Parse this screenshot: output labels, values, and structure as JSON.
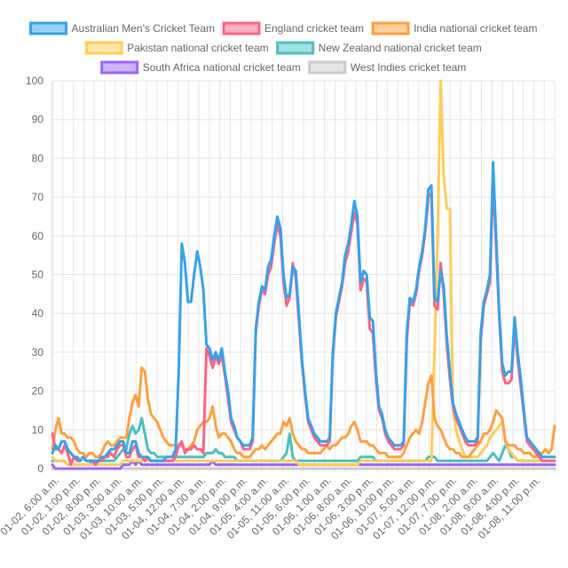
{
  "chart_data": {
    "type": "line",
    "ylim": [
      0,
      100
    ],
    "y_ticks": [
      0,
      10,
      20,
      30,
      40,
      50,
      60,
      70,
      80,
      90,
      100
    ],
    "grid": true,
    "legend_position": "top",
    "point_count": 164,
    "x_tick_labels": [
      "01-02, 6:00 a.m.",
      "01-02, 1:00 p.m.",
      "01-02, 8:00 p.m.",
      "01-03, 3:00 a.m.",
      "01-03, 10:00 a.m.",
      "01-03, 5:00 p.m.",
      "01-04, 12:00 a.m.",
      "01-04, 7:00 a.m.",
      "01-04, 2:00 p.m.",
      "01-04, 9:00 p.m.",
      "01-05, 4:00 a.m.",
      "01-05, 11:00 a.m.",
      "01-05, 6:00 p.m.",
      "01-06, 1:00 a.m.",
      "01-06, 8:00 a.m.",
      "01-06, 3:00 p.m.",
      "01-06, 10:00 p.m.",
      "01-07, 5:00 a.m.",
      "01-07, 12:00 p.m.",
      "01-07, 7:00 p.m.",
      "01-08, 2:00 a.m.",
      "01-08, 9:00 a.m.",
      "01-08, 4:00 p.m.",
      "01-08, 11:00 p.m."
    ],
    "series": [
      {
        "name": "Australian Men's Cricket Team",
        "color": "#36a2eb",
        "fill": "#9ad0f5",
        "values": [
          4,
          6,
          5,
          7,
          7,
          5,
          4,
          3,
          3,
          2,
          3,
          2,
          2,
          2,
          2,
          2,
          3,
          3,
          4,
          5,
          5,
          6,
          7,
          7,
          4,
          4,
          7,
          7,
          4,
          3,
          3,
          3,
          2,
          2,
          2,
          2,
          2,
          3,
          3,
          3,
          5,
          25,
          58,
          53,
          43,
          43,
          50,
          56,
          52,
          46,
          32,
          31,
          28,
          30,
          28,
          31,
          25,
          20,
          13,
          11,
          8,
          7,
          6,
          6,
          6,
          8,
          36,
          43,
          47,
          46,
          52,
          54,
          60,
          65,
          62,
          50,
          44,
          45,
          52,
          51,
          40,
          28,
          20,
          13,
          11,
          9,
          8,
          7,
          7,
          7,
          8,
          30,
          40,
          44,
          48,
          55,
          58,
          63,
          69,
          65,
          48,
          51,
          50,
          39,
          38,
          25,
          16,
          14,
          10,
          8,
          7,
          6,
          6,
          6,
          7,
          35,
          44,
          43,
          46,
          52,
          56,
          62,
          72,
          73,
          44,
          43,
          51,
          47,
          34,
          25,
          17,
          14,
          12,
          10,
          8,
          7,
          7,
          7,
          8,
          35,
          43,
          46,
          50,
          79,
          60,
          40,
          27,
          24,
          25,
          25,
          39,
          30,
          23,
          15,
          8,
          7,
          6,
          5,
          4,
          3,
          3,
          3,
          3,
          3
        ]
      },
      {
        "name": "England cricket team",
        "color": "#ff6384",
        "fill": "#ffb1c1",
        "values": [
          9,
          5,
          5,
          4,
          6,
          4,
          1,
          3,
          2,
          2,
          3,
          2,
          2,
          2,
          1,
          2,
          2,
          3,
          3,
          4,
          3,
          5,
          6,
          6,
          3,
          3,
          5,
          6,
          3,
          3,
          2,
          3,
          2,
          2,
          2,
          2,
          2,
          2,
          2,
          2,
          3,
          6,
          7,
          4,
          5,
          5,
          6,
          5,
          5,
          4,
          31,
          29,
          26,
          29,
          27,
          29,
          24,
          18,
          12,
          10,
          8,
          7,
          5,
          5,
          5,
          7,
          35,
          42,
          46,
          45,
          50,
          52,
          58,
          63,
          60,
          48,
          42,
          44,
          53,
          49,
          38,
          27,
          19,
          12,
          10,
          8,
          7,
          6,
          6,
          6,
          7,
          29,
          39,
          43,
          47,
          53,
          56,
          61,
          66,
          63,
          46,
          49,
          48,
          36,
          35,
          23,
          15,
          13,
          9,
          7,
          6,
          5,
          5,
          5,
          6,
          33,
          43,
          42,
          45,
          51,
          55,
          61,
          70,
          71,
          42,
          41,
          53,
          45,
          32,
          23,
          16,
          13,
          11,
          9,
          7,
          6,
          6,
          6,
          7,
          33,
          42,
          45,
          48,
          75,
          57,
          39,
          25,
          22,
          22,
          23,
          37,
          28,
          21,
          14,
          7,
          6,
          5,
          4,
          3,
          2,
          2,
          2,
          2,
          2
        ]
      },
      {
        "name": "India national cricket team",
        "color": "#ff9f40",
        "fill": "#ffcf9f",
        "values": [
          5,
          10,
          13,
          9,
          9,
          8,
          8,
          7,
          5,
          4,
          4,
          3,
          4,
          4,
          3,
          3,
          4,
          6,
          7,
          6,
          6,
          7,
          8,
          8,
          8,
          13,
          17,
          19,
          16,
          26,
          25,
          18,
          14,
          13,
          12,
          10,
          8,
          7,
          6,
          6,
          6,
          6,
          6,
          5,
          5,
          6,
          7,
          10,
          11,
          12,
          12,
          13,
          16,
          11,
          8,
          9,
          9,
          8,
          7,
          5,
          4,
          4,
          3,
          3,
          3,
          4,
          5,
          5,
          6,
          5,
          6,
          7,
          8,
          9,
          9,
          12,
          11,
          13,
          9,
          7,
          6,
          5,
          5,
          4,
          4,
          4,
          4,
          4,
          5,
          6,
          5,
          6,
          6,
          7,
          8,
          8,
          9,
          11,
          12,
          10,
          7,
          7,
          7,
          6,
          6,
          5,
          4,
          4,
          4,
          3,
          3,
          3,
          3,
          3,
          4,
          6,
          8,
          9,
          10,
          9,
          12,
          17,
          22,
          24,
          13,
          11,
          10,
          8,
          6,
          5,
          5,
          4,
          4,
          3,
          3,
          3,
          4,
          5,
          6,
          7,
          9,
          9,
          10,
          12,
          15,
          14,
          13,
          7,
          6,
          6,
          6,
          5,
          5,
          4,
          4,
          4,
          3,
          3,
          4,
          4,
          5,
          4,
          5,
          11
        ]
      },
      {
        "name": "Pakistan national cricket team",
        "color": "#ffcd56",
        "fill": "#ffe6aa",
        "values": [
          3,
          2,
          2,
          2,
          2,
          1,
          1,
          1,
          1,
          1,
          1,
          1,
          1,
          1,
          1,
          1,
          1,
          1,
          1,
          1,
          1,
          1,
          1,
          2,
          2,
          2,
          2,
          2,
          2,
          2,
          2,
          2,
          2,
          2,
          2,
          2,
          2,
          2,
          2,
          2,
          2,
          2,
          2,
          2,
          2,
          2,
          2,
          2,
          2,
          2,
          2,
          2,
          2,
          2,
          2,
          2,
          2,
          2,
          2,
          2,
          2,
          2,
          2,
          2,
          2,
          2,
          2,
          2,
          2,
          2,
          2,
          2,
          2,
          2,
          2,
          2,
          2,
          2,
          2,
          2,
          1,
          1,
          1,
          1,
          1,
          1,
          1,
          1,
          1,
          1,
          1,
          1,
          1,
          1,
          1,
          1,
          1,
          1,
          1,
          1,
          2,
          2,
          2,
          2,
          2,
          2,
          2,
          2,
          2,
          2,
          2,
          2,
          2,
          2,
          2,
          2,
          2,
          2,
          2,
          2,
          2,
          2,
          2,
          2,
          30,
          60,
          100,
          75,
          67,
          67,
          15,
          10,
          7,
          5,
          3,
          3,
          3,
          3,
          3,
          4,
          5,
          6,
          8,
          9,
          10,
          11,
          12,
          7,
          5,
          4,
          3,
          2,
          2,
          2,
          2,
          2,
          2,
          2,
          2,
          2,
          2,
          2,
          2,
          2
        ]
      },
      {
        "name": "New Zealand national cricket team",
        "color": "#4bc0c0",
        "fill": "#a5dfdf",
        "values": [
          2,
          2,
          2,
          2,
          2,
          1,
          1,
          1,
          1,
          1,
          1,
          1,
          1,
          2,
          2,
          2,
          2,
          2,
          2,
          2,
          2,
          3,
          4,
          5,
          5,
          9,
          11,
          9,
          10,
          13,
          9,
          5,
          4,
          4,
          3,
          3,
          3,
          3,
          3,
          3,
          3,
          3,
          3,
          3,
          3,
          3,
          3,
          3,
          3,
          3,
          4,
          4,
          4,
          5,
          4,
          4,
          3,
          3,
          3,
          3,
          2,
          2,
          2,
          2,
          2,
          2,
          2,
          2,
          2,
          2,
          2,
          2,
          2,
          2,
          2,
          3,
          4,
          9,
          3,
          2,
          2,
          2,
          2,
          2,
          2,
          2,
          2,
          2,
          2,
          2,
          2,
          2,
          2,
          2,
          2,
          2,
          2,
          2,
          2,
          2,
          3,
          3,
          3,
          3,
          3,
          2,
          2,
          2,
          2,
          2,
          2,
          2,
          2,
          2,
          2,
          2,
          2,
          2,
          2,
          2,
          2,
          2,
          3,
          3,
          3,
          2,
          2,
          2,
          2,
          2,
          2,
          2,
          2,
          2,
          2,
          2,
          2,
          2,
          2,
          2,
          2,
          2,
          3,
          4,
          3,
          2,
          4,
          6,
          5,
          3,
          3,
          2,
          2,
          2,
          2,
          2,
          2,
          2,
          2,
          2,
          2,
          2,
          2,
          2
        ]
      },
      {
        "name": "South Africa national cricket team",
        "color": "#9966ff",
        "fill": "#ccb2ff",
        "values": [
          1,
          0,
          0,
          0,
          0,
          0,
          0,
          0,
          0,
          0,
          0,
          0,
          0,
          0,
          0,
          0,
          0,
          0,
          0,
          0,
          0,
          0,
          0,
          1,
          1,
          1,
          2,
          1,
          2,
          1,
          1,
          1,
          1,
          1,
          1,
          1,
          1,
          1,
          1,
          1,
          1,
          1,
          1,
          1,
          1,
          1,
          1,
          1,
          1,
          1,
          1,
          1,
          2,
          1,
          1,
          1,
          1,
          1,
          1,
          1,
          1,
          1,
          1,
          1,
          1,
          1,
          1,
          1,
          1,
          1,
          1,
          1,
          1,
          1,
          1,
          1,
          1,
          1,
          1,
          1,
          1,
          1,
          1,
          1,
          1,
          1,
          1,
          1,
          1,
          1,
          1,
          1,
          1,
          1,
          1,
          1,
          1,
          1,
          1,
          1,
          1,
          1,
          1,
          1,
          1,
          1,
          1,
          1,
          1,
          1,
          1,
          1,
          1,
          1,
          1,
          1,
          1,
          1,
          1,
          1,
          1,
          1,
          1,
          1,
          1,
          1,
          1,
          1,
          1,
          1,
          1,
          1,
          1,
          1,
          1,
          1,
          1,
          1,
          1,
          1,
          1,
          1,
          1,
          1,
          1,
          1,
          1,
          1,
          1,
          1,
          1,
          1,
          1,
          1,
          1,
          1,
          1,
          1,
          1,
          1,
          1,
          1,
          1,
          1
        ]
      },
      {
        "name": "West Indies cricket team",
        "color": "#c9cbcf",
        "fill": "#e4e5e7",
        "values": [
          0,
          0,
          0,
          0,
          0,
          0,
          0,
          0,
          0,
          0,
          0,
          0,
          0,
          0,
          0,
          0,
          0,
          0,
          0,
          0,
          0,
          0,
          0,
          0,
          0,
          0,
          0,
          0,
          0,
          0,
          0,
          0,
          0,
          0,
          0,
          0,
          0,
          0,
          0,
          0,
          0,
          0,
          0,
          0,
          0,
          0,
          0,
          0,
          0,
          0,
          0,
          0,
          0,
          0,
          0,
          0,
          0,
          0,
          0,
          0,
          0,
          0,
          0,
          0,
          0,
          0,
          0,
          0,
          0,
          0,
          0,
          0,
          0,
          0,
          0,
          0,
          0,
          0,
          0,
          0,
          0,
          0,
          0,
          0,
          0,
          0,
          0,
          0,
          0,
          0,
          0,
          0,
          0,
          0,
          0,
          0,
          0,
          0,
          0,
          0,
          0,
          0,
          0,
          0,
          0,
          0,
          0,
          0,
          0,
          0,
          0,
          0,
          0,
          0,
          0,
          0,
          0,
          0,
          0,
          0,
          0,
          0,
          0,
          0,
          0,
          0,
          0,
          0,
          0,
          0,
          0,
          0,
          0,
          0,
          0,
          0,
          0,
          0,
          0,
          0,
          0,
          0,
          0,
          0,
          0,
          0,
          0,
          0,
          0,
          0,
          0,
          0,
          0,
          0,
          0,
          0,
          0,
          0,
          0,
          0,
          0,
          0,
          0,
          0
        ]
      }
    ]
  }
}
